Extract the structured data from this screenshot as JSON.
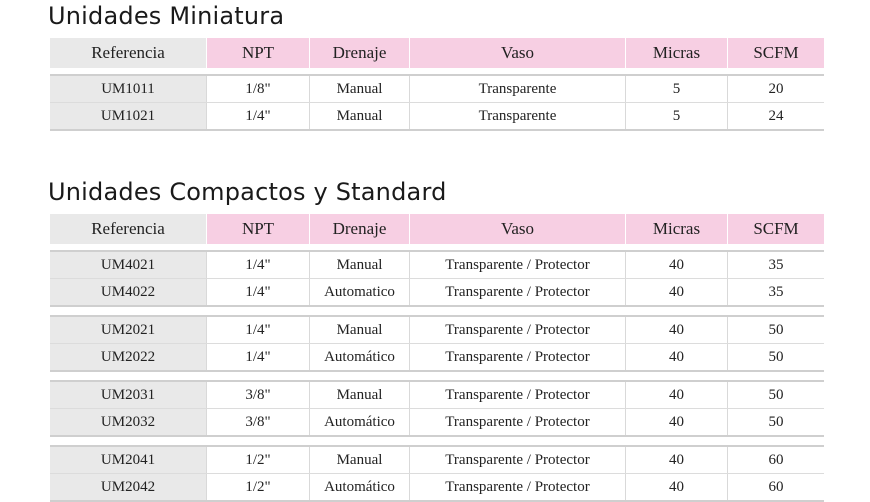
{
  "section1": {
    "title": "Unidades Miniatura",
    "headers": [
      "Referencia",
      "NPT",
      "Drenaje",
      "Vaso",
      "Micras",
      "SCFM"
    ],
    "groups": [
      [
        [
          "UM1011",
          "1/8\"",
          "Manual",
          "Transparente",
          "5",
          "20"
        ],
        [
          "UM1021",
          "1/4\"",
          "Manual",
          "Transparente",
          "5",
          "24"
        ]
      ]
    ]
  },
  "section2": {
    "title": "Unidades Compactos y Standard",
    "headers": [
      "Referencia",
      "NPT",
      "Drenaje",
      "Vaso",
      "Micras",
      "SCFM"
    ],
    "groups": [
      [
        [
          "UM4021",
          "1/4\"",
          "Manual",
          "Transparente / Protector",
          "40",
          "35"
        ],
        [
          "UM4022",
          "1/4\"",
          "Automatico",
          "Transparente / Protector",
          "40",
          "35"
        ]
      ],
      [
        [
          "UM2021",
          "1/4\"",
          "Manual",
          "Transparente / Protector",
          "40",
          "50"
        ],
        [
          "UM2022",
          "1/4\"",
          "Automático",
          "Transparente / Protector",
          "40",
          "50"
        ]
      ],
      [
        [
          "UM2031",
          "3/8\"",
          "Manual",
          "Transparente / Protector",
          "40",
          "50"
        ],
        [
          "UM2032",
          "3/8\"",
          "Automático",
          "Transparente / Protector",
          "40",
          "50"
        ]
      ],
      [
        [
          "UM2041",
          "1/2\"",
          "Manual",
          "Transparente / Protector",
          "40",
          "60"
        ],
        [
          "UM2042",
          "1/2\"",
          "Automático",
          "Transparente / Protector",
          "40",
          "60"
        ]
      ]
    ]
  }
}
